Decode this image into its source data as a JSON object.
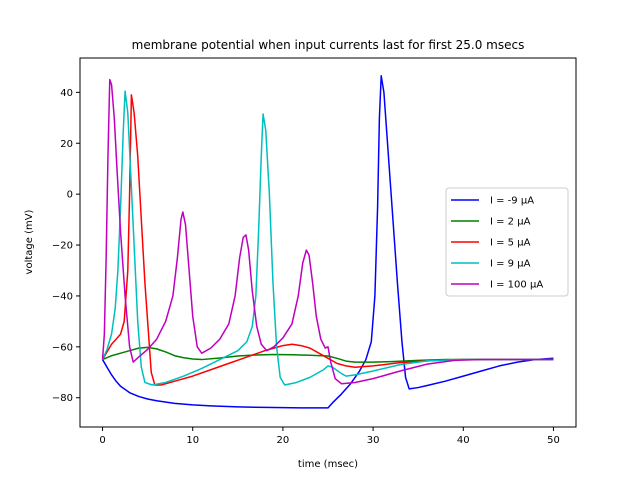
{
  "chart_data": {
    "type": "line",
    "title": "membrane potential when input currents last for first 25.0 msecs",
    "xlabel": "time (msec)",
    "ylabel": "voltage (mV)",
    "xlim": [
      -2.5,
      52.5
    ],
    "ylim": [
      -91.5,
      53.5
    ],
    "xticks": [
      0,
      10,
      20,
      30,
      40,
      50
    ],
    "yticks": [
      -80,
      -60,
      -40,
      -20,
      0,
      20,
      40
    ],
    "grid": false,
    "legend_position": "center-right",
    "series": [
      {
        "name": "I = -9 μA",
        "color": "#0000ff",
        "points": [
          [
            0,
            -65
          ],
          [
            0.5,
            -68
          ],
          [
            1,
            -71
          ],
          [
            1.5,
            -73.5
          ],
          [
            2,
            -75.5
          ],
          [
            3,
            -78
          ],
          [
            4,
            -79.5
          ],
          [
            5,
            -80.5
          ],
          [
            6,
            -81.2
          ],
          [
            8,
            -82.2
          ],
          [
            10,
            -82.8
          ],
          [
            12,
            -83.2
          ],
          [
            15,
            -83.6
          ],
          [
            18,
            -83.8
          ],
          [
            20,
            -83.9
          ],
          [
            22,
            -84
          ],
          [
            25,
            -84
          ],
          [
            25.5,
            -82
          ],
          [
            26.5,
            -78.5
          ],
          [
            27.5,
            -74.5
          ],
          [
            28.5,
            -69.5
          ],
          [
            29.2,
            -65
          ],
          [
            29.8,
            -58
          ],
          [
            30.2,
            -40
          ],
          [
            30.5,
            -5
          ],
          [
            30.7,
            30
          ],
          [
            30.9,
            46.5
          ],
          [
            31.2,
            40
          ],
          [
            31.6,
            20
          ],
          [
            32.1,
            -5
          ],
          [
            32.7,
            -35
          ],
          [
            33.2,
            -58
          ],
          [
            33.6,
            -72
          ],
          [
            34,
            -76.5
          ],
          [
            35,
            -76
          ],
          [
            36,
            -75.2
          ],
          [
            38,
            -73.5
          ],
          [
            40,
            -71.5
          ],
          [
            42,
            -69.5
          ],
          [
            44,
            -67.5
          ],
          [
            46,
            -66
          ],
          [
            48,
            -65
          ],
          [
            50,
            -64.5
          ]
        ]
      },
      {
        "name": "I = 2 μA",
        "color": "#008000",
        "points": [
          [
            0,
            -65
          ],
          [
            1,
            -63.5
          ],
          [
            2,
            -62.5
          ],
          [
            3,
            -61.5
          ],
          [
            4,
            -60.5
          ],
          [
            5,
            -60.2
          ],
          [
            6,
            -60.8
          ],
          [
            7,
            -62
          ],
          [
            8,
            -63.5
          ],
          [
            9,
            -64.3
          ],
          [
            10,
            -64.8
          ],
          [
            11,
            -65
          ],
          [
            13,
            -64.4
          ],
          [
            15,
            -63.6
          ],
          [
            17,
            -63.2
          ],
          [
            19,
            -63
          ],
          [
            21,
            -63.1
          ],
          [
            23,
            -63.3
          ],
          [
            25,
            -63.6
          ],
          [
            26,
            -64.5
          ],
          [
            27,
            -65.6
          ],
          [
            28,
            -66
          ],
          [
            30,
            -66
          ],
          [
            32,
            -65.8
          ],
          [
            35,
            -65.3
          ],
          [
            38,
            -65
          ],
          [
            42,
            -65
          ],
          [
            46,
            -65
          ],
          [
            50,
            -65
          ]
        ]
      },
      {
        "name": "I = 5 μA",
        "color": "#ff0000",
        "points": [
          [
            0,
            -65
          ],
          [
            0.5,
            -62
          ],
          [
            1,
            -59
          ],
          [
            1.5,
            -57
          ],
          [
            2,
            -55
          ],
          [
            2.4,
            -50
          ],
          [
            2.8,
            -30
          ],
          [
            3,
            0
          ],
          [
            3.2,
            39
          ],
          [
            3.5,
            32
          ],
          [
            3.9,
            15
          ],
          [
            4.3,
            -10
          ],
          [
            4.7,
            -35
          ],
          [
            5.1,
            -55
          ],
          [
            5.4,
            -70
          ],
          [
            5.8,
            -75
          ],
          [
            6.5,
            -75
          ],
          [
            8,
            -73.5
          ],
          [
            10,
            -71.5
          ],
          [
            12,
            -69
          ],
          [
            14,
            -66.5
          ],
          [
            16,
            -64
          ],
          [
            18,
            -61.5
          ],
          [
            19,
            -60.5
          ],
          [
            20,
            -59.5
          ],
          [
            21,
            -59
          ],
          [
            22,
            -59.5
          ],
          [
            23,
            -60.5
          ],
          [
            24,
            -62.5
          ],
          [
            25,
            -64.5
          ],
          [
            26,
            -66.5
          ],
          [
            27,
            -67.5
          ],
          [
            28,
            -68
          ],
          [
            30,
            -67.5
          ],
          [
            33,
            -66.2
          ],
          [
            36,
            -65.5
          ],
          [
            40,
            -65
          ],
          [
            45,
            -65
          ],
          [
            50,
            -65
          ]
        ]
      },
      {
        "name": "I = 9 μA",
        "color": "#00bfbf",
        "points": [
          [
            0,
            -65
          ],
          [
            0.5,
            -61
          ],
          [
            1,
            -55
          ],
          [
            1.4,
            -45
          ],
          [
            1.7,
            -30
          ],
          [
            2,
            -5
          ],
          [
            2.3,
            25
          ],
          [
            2.5,
            40.5
          ],
          [
            2.8,
            32
          ],
          [
            3.1,
            10
          ],
          [
            3.5,
            -20
          ],
          [
            3.9,
            -50
          ],
          [
            4.3,
            -68
          ],
          [
            4.7,
            -74
          ],
          [
            5.5,
            -75
          ],
          [
            7,
            -74
          ],
          [
            9,
            -71.5
          ],
          [
            11,
            -68.5
          ],
          [
            13,
            -65
          ],
          [
            15,
            -61.5
          ],
          [
            16,
            -58
          ],
          [
            16.6,
            -52
          ],
          [
            17,
            -40
          ],
          [
            17.3,
            -15
          ],
          [
            17.6,
            15
          ],
          [
            17.8,
            31.5
          ],
          [
            18.1,
            25
          ],
          [
            18.5,
            0
          ],
          [
            18.9,
            -35
          ],
          [
            19.3,
            -60
          ],
          [
            19.7,
            -72
          ],
          [
            20.2,
            -75
          ],
          [
            21.5,
            -74
          ],
          [
            23,
            -72
          ],
          [
            24.5,
            -69
          ],
          [
            25,
            -67.5
          ],
          [
            25.5,
            -68
          ],
          [
            26.5,
            -70.5
          ],
          [
            27,
            -71.5
          ],
          [
            28,
            -71
          ],
          [
            30,
            -69.5
          ],
          [
            33,
            -67
          ],
          [
            36,
            -65.5
          ],
          [
            40,
            -65
          ],
          [
            45,
            -65
          ],
          [
            50,
            -65
          ]
        ]
      },
      {
        "name": "I = 100 μA",
        "color": "#bf00bf",
        "points": [
          [
            0,
            -65
          ],
          [
            0.2,
            -55
          ],
          [
            0.4,
            -25
          ],
          [
            0.6,
            15
          ],
          [
            0.8,
            45
          ],
          [
            1,
            43
          ],
          [
            1.3,
            30
          ],
          [
            1.6,
            10
          ],
          [
            2,
            -15
          ],
          [
            2.5,
            -40
          ],
          [
            3,
            -60
          ],
          [
            3.4,
            -66
          ],
          [
            4,
            -64
          ],
          [
            5,
            -61
          ],
          [
            6,
            -57
          ],
          [
            7,
            -50
          ],
          [
            7.8,
            -40
          ],
          [
            8.3,
            -25
          ],
          [
            8.7,
            -10
          ],
          [
            8.9,
            -7
          ],
          [
            9.2,
            -12
          ],
          [
            9.6,
            -30
          ],
          [
            10,
            -48
          ],
          [
            10.5,
            -60
          ],
          [
            11,
            -62.5
          ],
          [
            12,
            -60.5
          ],
          [
            13,
            -57
          ],
          [
            14,
            -51
          ],
          [
            14.7,
            -40
          ],
          [
            15.2,
            -25
          ],
          [
            15.6,
            -17
          ],
          [
            15.9,
            -16
          ],
          [
            16.2,
            -22
          ],
          [
            16.6,
            -38
          ],
          [
            17.1,
            -52
          ],
          [
            17.6,
            -59
          ],
          [
            18.2,
            -61.5
          ],
          [
            19,
            -60
          ],
          [
            20,
            -56.5
          ],
          [
            21,
            -51
          ],
          [
            21.7,
            -40
          ],
          [
            22.2,
            -27
          ],
          [
            22.6,
            -22
          ],
          [
            22.9,
            -24
          ],
          [
            23.3,
            -35
          ],
          [
            23.7,
            -48
          ],
          [
            24.2,
            -57
          ],
          [
            24.7,
            -60.5
          ],
          [
            25,
            -60
          ],
          [
            25.3,
            -66
          ],
          [
            25.8,
            -72.5
          ],
          [
            26.5,
            -74.5
          ],
          [
            28,
            -74
          ],
          [
            30,
            -72.5
          ],
          [
            33,
            -69.5
          ],
          [
            36,
            -66.8
          ],
          [
            39,
            -65.3
          ],
          [
            42,
            -65
          ],
          [
            46,
            -65
          ],
          [
            50,
            -65
          ]
        ]
      }
    ]
  }
}
